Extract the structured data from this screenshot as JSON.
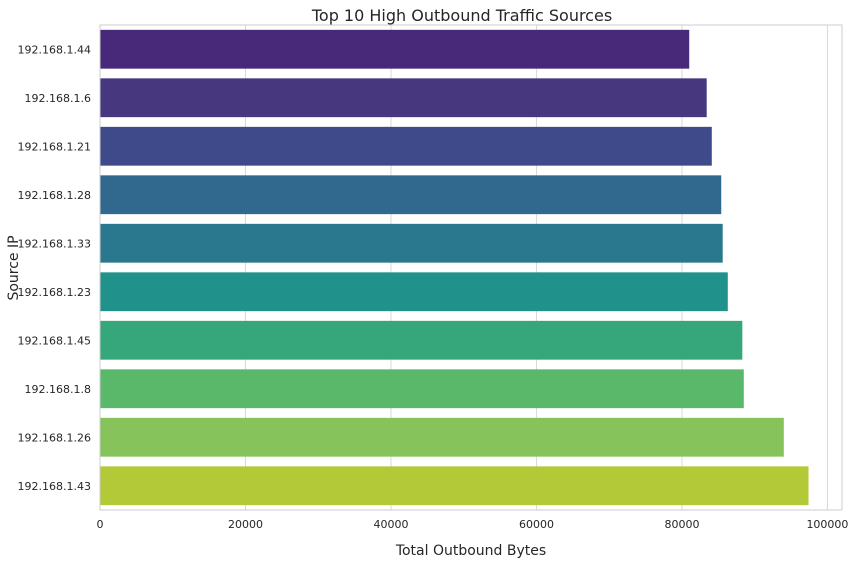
{
  "chart_data": {
    "type": "bar",
    "orientation": "horizontal",
    "title": "Top 10 High Outbound Traffic Sources",
    "xlabel": "Total Outbound Bytes",
    "ylabel": "Source IP",
    "xlim": [
      0,
      102000
    ],
    "xticks": [
      0,
      20000,
      40000,
      60000,
      80000,
      100000
    ],
    "grid": true,
    "categories": [
      "192.168.1.44",
      "192.168.1.6",
      "192.168.1.21",
      "192.168.1.28",
      "192.168.1.33",
      "192.168.1.23",
      "192.168.1.45",
      "192.168.1.8",
      "192.168.1.26",
      "192.168.1.43"
    ],
    "values": [
      81000,
      83400,
      84100,
      85400,
      85600,
      86300,
      88300,
      88500,
      94000,
      97400
    ],
    "colors": [
      "#482878",
      "#46377f",
      "#3e4a89",
      "#31688e",
      "#2a788e",
      "#21918c",
      "#35a77a",
      "#5ab86a",
      "#86c35a",
      "#b4c937"
    ]
  }
}
